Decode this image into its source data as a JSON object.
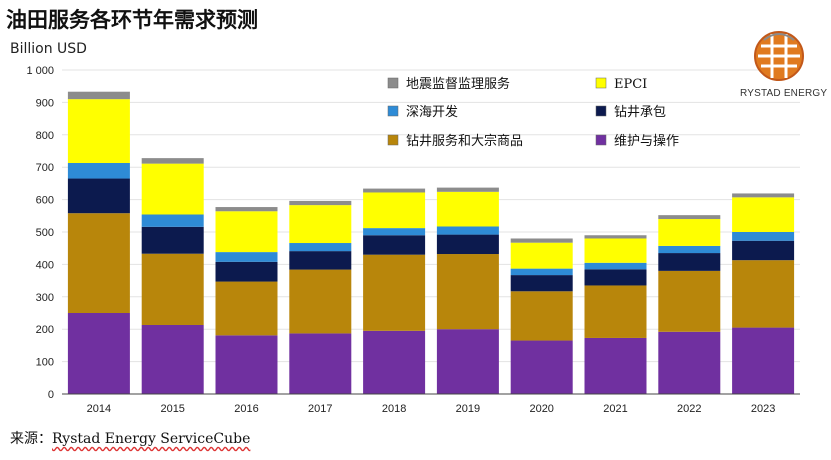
{
  "title": "油田服务各环节年需求预测",
  "unit_label": "Billion USD",
  "source_prefix": "来源：",
  "source_name": "Rystad Energy ServiceCube",
  "logo_text": "RYSTAD ENERGY",
  "chart_data": {
    "type": "bar",
    "stacked": true,
    "title": "油田服务各环节年需求预测",
    "ylabel": "Billion USD",
    "xlabel": "",
    "ylim": [
      0,
      1000
    ],
    "yticks": [
      0,
      100,
      200,
      300,
      400,
      500,
      600,
      700,
      800,
      900,
      1000
    ],
    "ytick_labels": [
      "0",
      "100",
      "200",
      "300",
      "400",
      "500",
      "600",
      "700",
      "800",
      "900",
      "1 000"
    ],
    "grid": true,
    "legend_position": "top-right",
    "categories": [
      "2014",
      "2015",
      "2016",
      "2017",
      "2018",
      "2019",
      "2020",
      "2021",
      "2022",
      "2023"
    ],
    "series": [
      {
        "name": "维护与操作",
        "color": "#7030a0",
        "values": [
          250,
          213,
          181,
          187,
          195,
          200,
          165,
          173,
          192,
          205
        ]
      },
      {
        "name": "钻井服务和大宗商品",
        "color": "#b8860b",
        "values": [
          308,
          220,
          166,
          197,
          235,
          232,
          152,
          162,
          188,
          208
        ]
      },
      {
        "name": "钻井承包",
        "color": "#0c1a4e",
        "values": [
          107,
          83,
          61,
          57,
          60,
          60,
          50,
          50,
          55,
          60
        ]
      },
      {
        "name": "深海开发",
        "color": "#2e8bd6",
        "values": [
          48,
          38,
          30,
          25,
          22,
          25,
          20,
          20,
          22,
          27
        ]
      },
      {
        "name": "EPCI",
        "color": "#ffff00",
        "values": [
          197,
          157,
          126,
          117,
          110,
          107,
          80,
          75,
          83,
          107
        ]
      },
      {
        "name": "地震监督监理服务",
        "color": "#8c8c8c",
        "values": [
          23,
          17,
          13,
          13,
          12,
          13,
          13,
          10,
          12,
          12
        ]
      }
    ],
    "legend_order": [
      "地震监督监理服务",
      "EPCI",
      "深海开发",
      "钻井承包",
      "钻井服务和大宗商品",
      "维护与操作"
    ]
  }
}
